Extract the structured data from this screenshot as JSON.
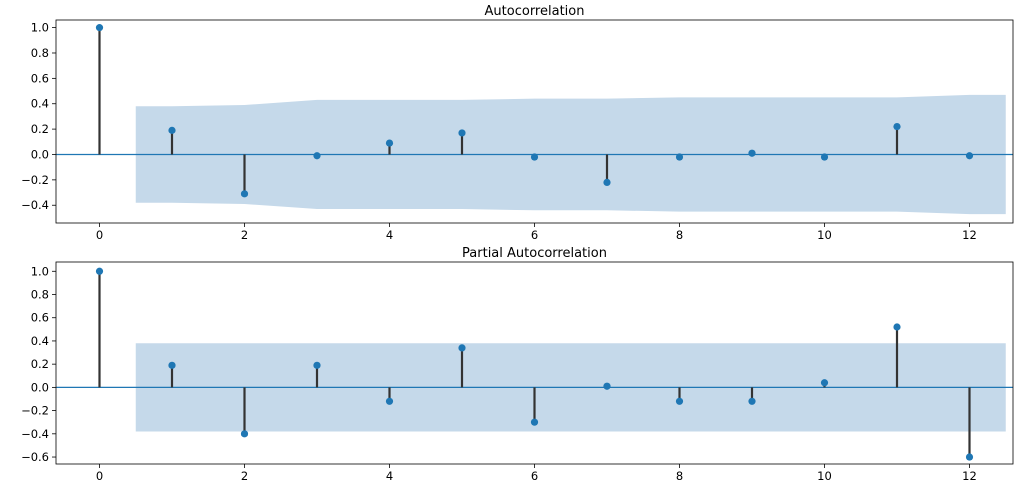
{
  "chart_data": [
    {
      "type": "stem",
      "title": "Autocorrelation",
      "xlabel": "",
      "ylabel": "",
      "xlim": [
        -0.6,
        12.6
      ],
      "ylim": [
        -0.54,
        1.06
      ],
      "xticks": [
        0,
        2,
        4,
        6,
        8,
        10,
        12
      ],
      "xtick_labels": [
        "0",
        "2",
        "4",
        "6",
        "8",
        "10",
        "12"
      ],
      "yticks": [
        -0.4,
        -0.2,
        0.0,
        0.2,
        0.4,
        0.6,
        0.8,
        1.0
      ],
      "ytick_labels": [
        "−0.4",
        "−0.2",
        "0.0",
        "0.2",
        "0.4",
        "0.6",
        "0.8",
        "1.0"
      ],
      "lags": [
        0,
        1,
        2,
        3,
        4,
        5,
        6,
        7,
        8,
        9,
        10,
        11,
        12
      ],
      "values": [
        1.0,
        0.19,
        -0.31,
        -0.01,
        0.09,
        0.17,
        -0.02,
        -0.22,
        -0.02,
        0.01,
        -0.02,
        0.22,
        -0.01
      ],
      "confint": {
        "x": [
          0.5,
          1,
          2,
          3,
          4,
          5,
          6,
          7,
          8,
          9,
          10,
          11,
          12,
          12.5
        ],
        "upper": [
          0.38,
          0.38,
          0.39,
          0.43,
          0.43,
          0.43,
          0.44,
          0.44,
          0.45,
          0.45,
          0.45,
          0.45,
          0.47,
          0.47
        ]
      },
      "grid": false,
      "legend": "none"
    },
    {
      "type": "stem",
      "title": "Partial Autocorrelation",
      "xlabel": "",
      "ylabel": "",
      "xlim": [
        -0.6,
        12.6
      ],
      "ylim": [
        -0.66,
        1.08
      ],
      "xticks": [
        0,
        2,
        4,
        6,
        8,
        10,
        12
      ],
      "xtick_labels": [
        "0",
        "2",
        "4",
        "6",
        "8",
        "10",
        "12"
      ],
      "yticks": [
        -0.6,
        -0.4,
        -0.2,
        0.0,
        0.2,
        0.4,
        0.6,
        0.8,
        1.0
      ],
      "ytick_labels": [
        "−0.6",
        "−0.4",
        "−0.2",
        "0.0",
        "0.2",
        "0.4",
        "0.6",
        "0.8",
        "1.0"
      ],
      "lags": [
        0,
        1,
        2,
        3,
        4,
        5,
        6,
        7,
        8,
        9,
        10,
        11,
        12
      ],
      "values": [
        1.0,
        0.19,
        -0.4,
        0.19,
        -0.12,
        0.34,
        -0.3,
        0.01,
        -0.12,
        -0.12,
        0.04,
        0.52,
        -0.6
      ],
      "confint": {
        "x": [
          0.5,
          12.5
        ],
        "upper": [
          0.38,
          0.38
        ]
      },
      "grid": false,
      "legend": "none"
    }
  ],
  "colors": {
    "marker": "#1f77b4",
    "stem": "#333333",
    "band": "#c5d9ea",
    "zero_line": "#1f77b4",
    "axes": "#000000"
  }
}
